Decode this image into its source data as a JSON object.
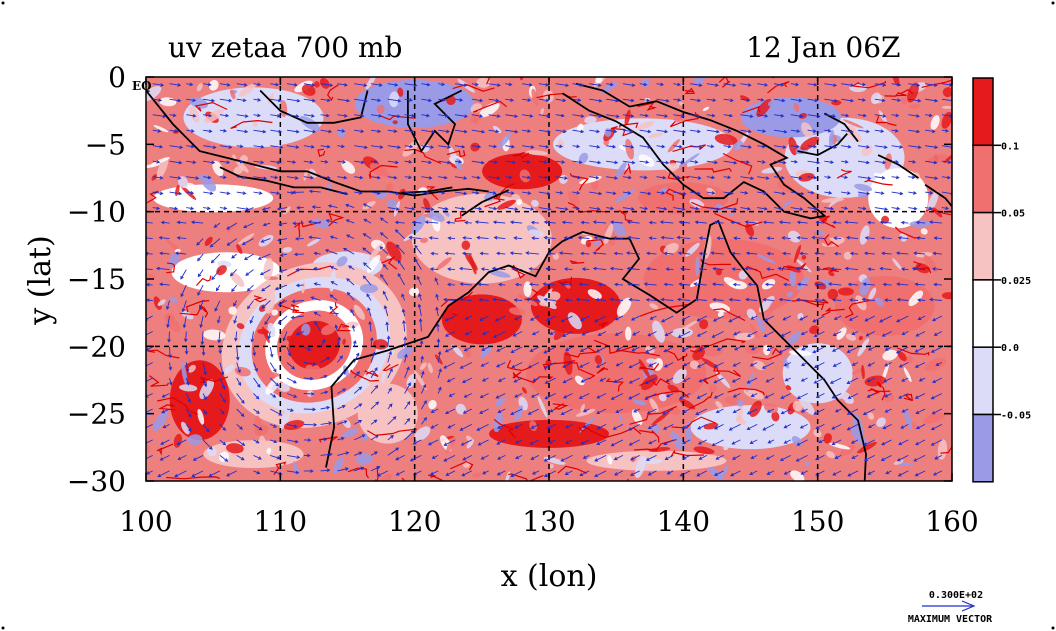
{
  "chart_data": {
    "type": "heatmap",
    "title": "uv zetaa 700 mb",
    "date": "12 Jan 06Z",
    "xlabel": "x (lon)",
    "ylabel": "y (lat)",
    "xlim": [
      100,
      160
    ],
    "ylim": [
      -30,
      0
    ],
    "x_ticks": [
      "100",
      "110",
      "120",
      "130",
      "140",
      "150",
      "160"
    ],
    "y_ticks": [
      "0",
      "−5",
      "−10",
      "−15",
      "−20",
      "−25",
      "−30"
    ],
    "eq_label": "EQ",
    "colorbar": {
      "levels": [
        "0.1",
        "0.05",
        "0.025",
        "0.0",
        "-0.05"
      ],
      "colors": [
        "#e41a1c",
        "#f07070",
        "#f6c2c2",
        "#ffffff",
        "#dcdcf8",
        "#9a9ae6"
      ]
    },
    "vector_legend": {
      "magnitude": "0.300E+02",
      "caption": "MAXIMUM VECTOR",
      "color": "#1f2ecc"
    },
    "features": {
      "cyclone_center": {
        "lon": 112,
        "lat": -19.5
      },
      "coastline_color": "#000000",
      "grid": "dashed"
    }
  }
}
